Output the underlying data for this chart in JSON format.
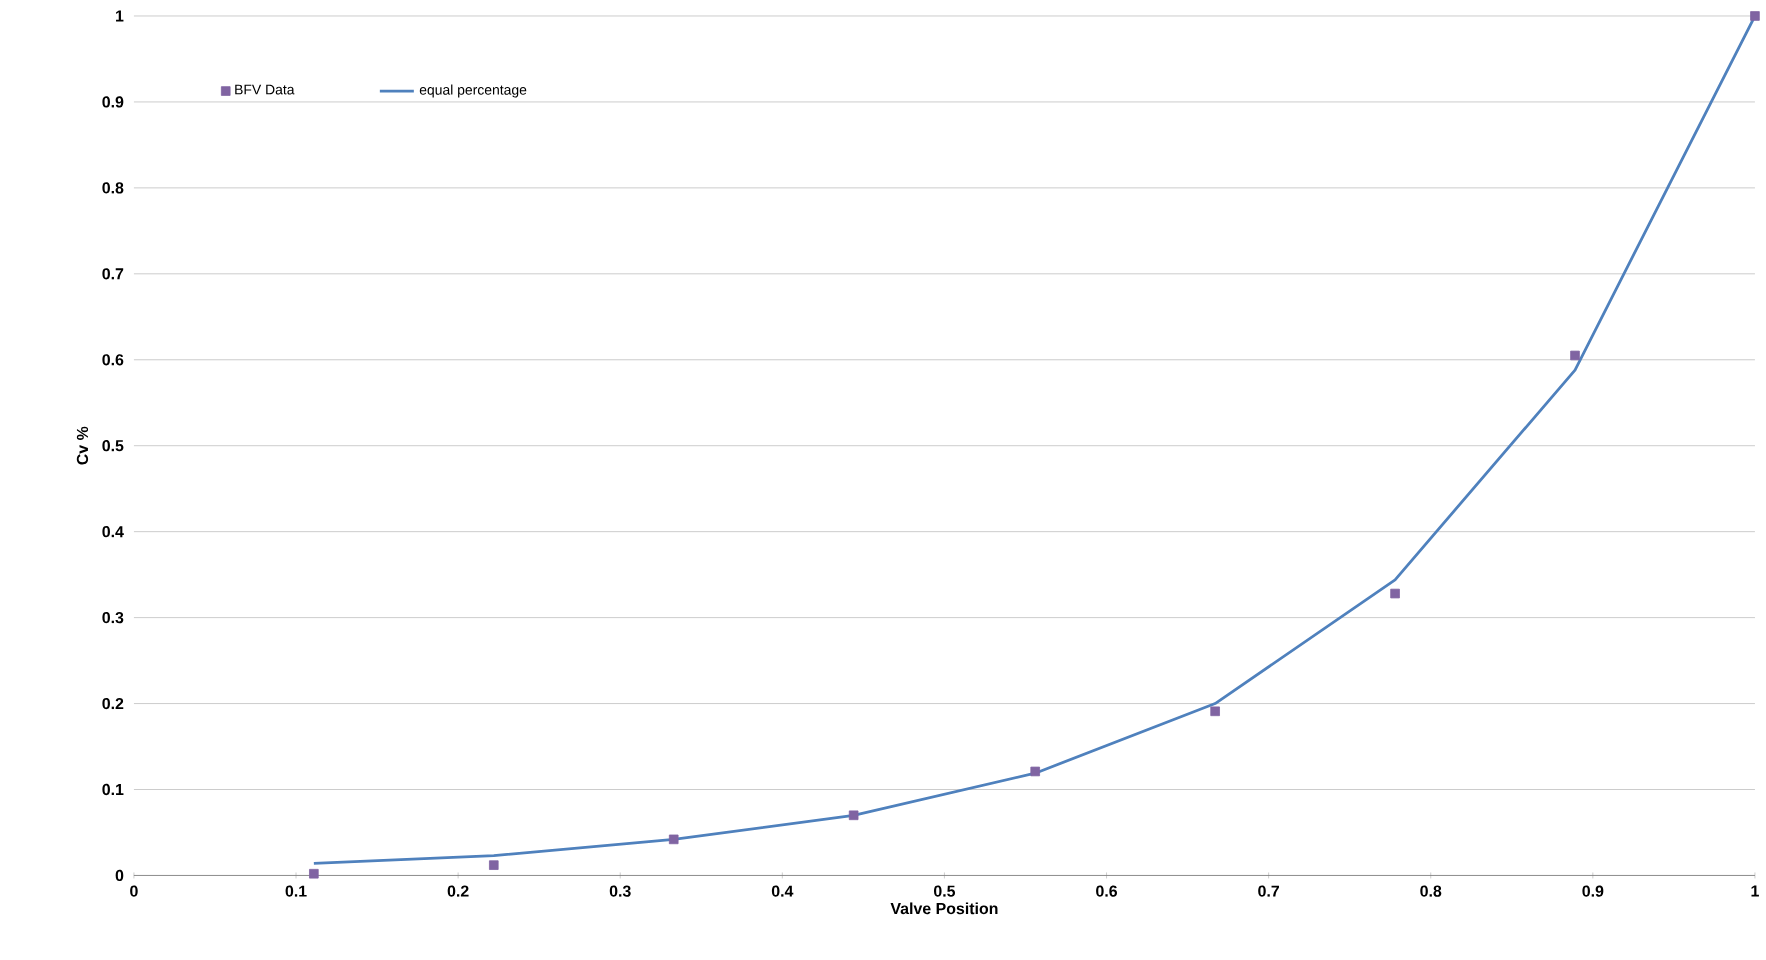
{
  "chart_data": {
    "type": "line",
    "xlabel": "Valve Position",
    "ylabel": "Cv %",
    "xlim": [
      0,
      1
    ],
    "ylim": [
      0,
      1
    ],
    "xticks": [
      0,
      0.1,
      0.2,
      0.3,
      0.4,
      0.5,
      0.6,
      0.7,
      0.8,
      0.9,
      1
    ],
    "yticks": [
      0,
      0.1,
      0.2,
      0.3,
      0.4,
      0.5,
      0.6,
      0.7,
      0.8,
      0.9,
      1
    ],
    "grid": "y",
    "legend": "top left",
    "series": [
      {
        "name": "BFV Data",
        "type": "scatter",
        "color": "#8064a2",
        "marker": "square",
        "x": [
          0.111,
          0.222,
          0.333,
          0.444,
          0.556,
          0.667,
          0.778,
          0.889,
          1.0
        ],
        "values": [
          0.002,
          0.012,
          0.042,
          0.07,
          0.121,
          0.191,
          0.328,
          0.605,
          1.0
        ]
      },
      {
        "name": "equal percentage",
        "type": "line",
        "color": "#4f81bd",
        "marker": "none",
        "x": [
          0.111,
          0.222,
          0.333,
          0.444,
          0.556,
          0.667,
          0.778,
          0.889,
          1.0
        ],
        "values": [
          0.014,
          0.023,
          0.042,
          0.07,
          0.119,
          0.2,
          0.344,
          0.588,
          1.0
        ]
      }
    ]
  }
}
